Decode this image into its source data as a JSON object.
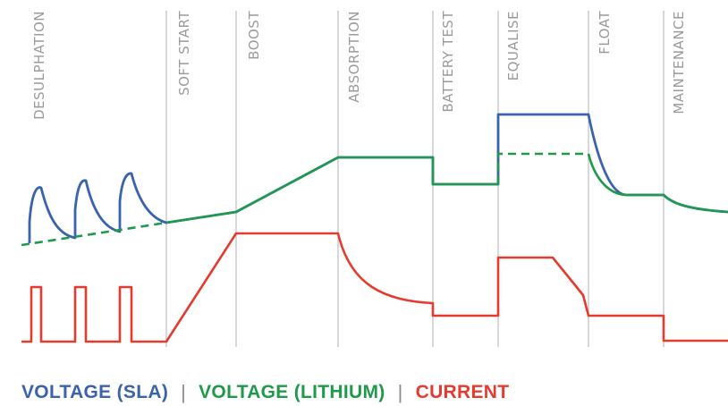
{
  "stages": [
    "DESULPHATION",
    "SOFT START",
    "BOOST",
    "ABSORPTION",
    "BATTERY TEST",
    "EQUALISE",
    "FLOAT",
    "MAINTENANCE"
  ],
  "legend": {
    "sla": "VOLTAGE (SLA)",
    "lithium": "VOLTAGE (LITHIUM)",
    "current": "CURRENT",
    "separator": "|"
  },
  "colors": {
    "sla": "#3b63ad",
    "lithium": "#1e9a4a",
    "current": "#e53b2f",
    "divider": "#bdbdbd",
    "label": "#9a9a9a"
  }
}
